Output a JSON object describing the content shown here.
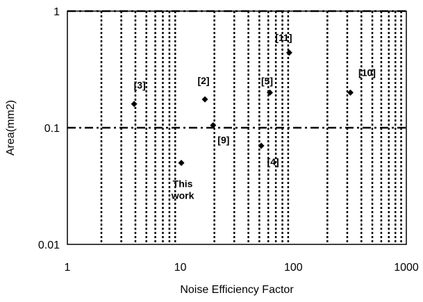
{
  "chart_data": {
    "type": "scatter",
    "xscale": "log",
    "yscale": "log",
    "xlim": [
      1,
      1000
    ],
    "ylim": [
      0.01,
      1
    ],
    "xlabel": "Noise Efficiency Factor",
    "ylabel": "Area(mm2)",
    "xticks": [
      "1",
      "10",
      "100",
      "1000"
    ],
    "yticks": [
      "0.01",
      "0.1",
      "1"
    ],
    "grid": "dotted vertical lines at minor log divisions; dash-dot horizontal lines at 0.1 and 1",
    "points": [
      {
        "label": "[3]",
        "x": 3.9,
        "y": 0.16
      },
      {
        "label": "[2]",
        "x": 16.5,
        "y": 0.175
      },
      {
        "label": "[9]",
        "x": 19.5,
        "y": 0.105
      },
      {
        "label": "This work",
        "x": 10.2,
        "y": 0.05
      },
      {
        "label": "[4]",
        "x": 52,
        "y": 0.07
      },
      {
        "label": "[5]",
        "x": 62,
        "y": 0.2
      },
      {
        "label": "[11]",
        "x": 92,
        "y": 0.44
      },
      {
        "label": "[10]",
        "x": 320,
        "y": 0.2
      }
    ],
    "marker_color": "#000000"
  }
}
